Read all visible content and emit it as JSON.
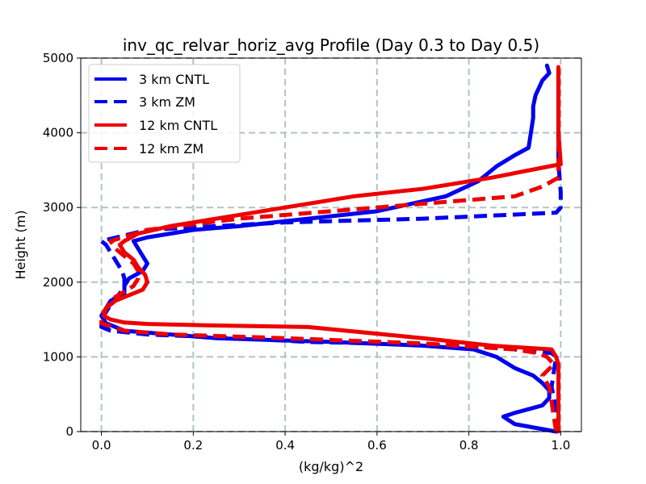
{
  "chart_data": {
    "type": "line",
    "title": "inv_qc_relvar_horiz_avg Profile (Day 0.3 to Day 0.5)",
    "xlabel": "(kg/kg)^2",
    "ylabel": "Height (m)",
    "xlim": [
      -0.045,
      1.045
    ],
    "ylim": [
      0,
      5000
    ],
    "xticks": [
      0.0,
      0.2,
      0.4,
      0.6,
      0.8,
      1.0
    ],
    "xtick_labels": [
      "0.0",
      "0.2",
      "0.4",
      "0.6",
      "0.8",
      "1.0"
    ],
    "yticks": [
      0,
      1000,
      2000,
      3000,
      4000,
      5000
    ],
    "ytick_labels": [
      "0",
      "1000",
      "2000",
      "3000",
      "4000",
      "5000"
    ],
    "grid": true,
    "legend_position": "upper-left",
    "series": [
      {
        "name": "3 km CNTL",
        "color": "#0000ee",
        "dash": "solid",
        "points": [
          [
            0.99,
            0
          ],
          [
            0.9,
            100
          ],
          [
            0.875,
            200
          ],
          [
            0.9,
            250
          ],
          [
            0.96,
            350
          ],
          [
            0.975,
            450
          ],
          [
            0.975,
            550
          ],
          [
            0.96,
            650
          ],
          [
            0.94,
            750
          ],
          [
            0.9,
            850
          ],
          [
            0.86,
            1000
          ],
          [
            0.81,
            1100
          ],
          [
            0.7,
            1150
          ],
          [
            0.5,
            1200
          ],
          [
            0.25,
            1250
          ],
          [
            0.05,
            1350
          ],
          [
            0.01,
            1450
          ],
          [
            0.0,
            1550
          ],
          [
            0.01,
            1650
          ],
          [
            0.02,
            1750
          ],
          [
            0.05,
            1850
          ],
          [
            0.05,
            1950
          ],
          [
            0.06,
            2050
          ],
          [
            0.09,
            2150
          ],
          [
            0.1,
            2250
          ],
          [
            0.09,
            2350
          ],
          [
            0.08,
            2450
          ],
          [
            0.07,
            2550
          ],
          [
            0.1,
            2600
          ],
          [
            0.15,
            2650
          ],
          [
            0.2,
            2700
          ],
          [
            0.3,
            2750
          ],
          [
            0.45,
            2850
          ],
          [
            0.6,
            2950
          ],
          [
            0.75,
            3150
          ],
          [
            0.82,
            3350
          ],
          [
            0.86,
            3550
          ],
          [
            0.9,
            3700
          ],
          [
            0.93,
            3800
          ],
          [
            0.935,
            4000
          ],
          [
            0.94,
            4200
          ],
          [
            0.94,
            4350
          ],
          [
            0.945,
            4500
          ],
          [
            0.96,
            4700
          ],
          [
            0.975,
            4800
          ],
          [
            0.97,
            4900
          ]
        ]
      },
      {
        "name": "3 km ZM",
        "color": "#0000ee",
        "dash": "dashed",
        "points": [
          [
            0.995,
            0
          ],
          [
            0.99,
            300
          ],
          [
            0.98,
            600
          ],
          [
            0.985,
            800
          ],
          [
            0.99,
            1000
          ],
          [
            0.98,
            1050
          ],
          [
            0.9,
            1100
          ],
          [
            0.8,
            1150
          ],
          [
            0.6,
            1180
          ],
          [
            0.45,
            1200
          ],
          [
            0.3,
            1250
          ],
          [
            0.1,
            1300
          ],
          [
            0.02,
            1350
          ],
          [
            0.0,
            1400
          ],
          [
            0.0,
            1500
          ],
          [
            0.01,
            1600
          ],
          [
            0.02,
            1700
          ],
          [
            0.04,
            1850
          ],
          [
            0.05,
            1950
          ],
          [
            0.05,
            2050
          ],
          [
            0.045,
            2150
          ],
          [
            0.03,
            2300
          ],
          [
            0.02,
            2400
          ],
          [
            0.01,
            2500
          ],
          [
            0.0,
            2550
          ],
          [
            0.1,
            2700
          ],
          [
            0.4,
            2800
          ],
          [
            0.7,
            2850
          ],
          [
            0.99,
            2930
          ],
          [
            1.0,
            3000
          ],
          [
            1.0,
            3200
          ],
          [
            0.995,
            3600
          ],
          [
            0.995,
            4000
          ],
          [
            0.995,
            4400
          ],
          [
            0.995,
            4880
          ]
        ]
      },
      {
        "name": "12 km CNTL",
        "color": "#ee0000",
        "dash": "solid",
        "points": [
          [
            0.995,
            0
          ],
          [
            0.995,
            300
          ],
          [
            0.995,
            600
          ],
          [
            0.995,
            900
          ],
          [
            0.99,
            1000
          ],
          [
            0.98,
            1100
          ],
          [
            0.85,
            1150
          ],
          [
            0.7,
            1250
          ],
          [
            0.45,
            1400
          ],
          [
            0.25,
            1420
          ],
          [
            0.1,
            1440
          ],
          [
            0.05,
            1460
          ],
          [
            0.02,
            1500
          ],
          [
            0.005,
            1550
          ],
          [
            0.01,
            1650
          ],
          [
            0.03,
            1750
          ],
          [
            0.07,
            1850
          ],
          [
            0.09,
            1900
          ],
          [
            0.1,
            2000
          ],
          [
            0.095,
            2100
          ],
          [
            0.08,
            2200
          ],
          [
            0.07,
            2300
          ],
          [
            0.05,
            2400
          ],
          [
            0.04,
            2500
          ],
          [
            0.05,
            2550
          ],
          [
            0.08,
            2650
          ],
          [
            0.15,
            2750
          ],
          [
            0.3,
            2900
          ],
          [
            0.45,
            3050
          ],
          [
            0.55,
            3150
          ],
          [
            0.7,
            3250
          ],
          [
            0.85,
            3400
          ],
          [
            1.0,
            3580
          ],
          [
            0.995,
            4000
          ],
          [
            0.995,
            4400
          ],
          [
            0.995,
            4880
          ]
        ]
      },
      {
        "name": "12 km ZM",
        "color": "#ee0000",
        "dash": "dashed",
        "points": [
          [
            0.99,
            0
          ],
          [
            0.985,
            200
          ],
          [
            0.98,
            400
          ],
          [
            0.975,
            600
          ],
          [
            0.96,
            750
          ],
          [
            0.985,
            900
          ],
          [
            0.97,
            1000
          ],
          [
            0.95,
            1050
          ],
          [
            0.9,
            1100
          ],
          [
            0.7,
            1180
          ],
          [
            0.4,
            1250
          ],
          [
            0.15,
            1300
          ],
          [
            0.05,
            1350
          ],
          [
            0.0,
            1450
          ],
          [
            0.0,
            1550
          ],
          [
            0.01,
            1650
          ],
          [
            0.03,
            1800
          ],
          [
            0.07,
            1950
          ],
          [
            0.08,
            2050
          ],
          [
            0.08,
            2150
          ],
          [
            0.07,
            2250
          ],
          [
            0.05,
            2350
          ],
          [
            0.03,
            2450
          ],
          [
            0.02,
            2550
          ],
          [
            0.1,
            2700
          ],
          [
            0.3,
            2850
          ],
          [
            0.6,
            3000
          ],
          [
            0.8,
            3100
          ],
          [
            0.9,
            3150
          ],
          [
            0.96,
            3280
          ],
          [
            0.995,
            3400
          ],
          [
            0.995,
            3800
          ],
          [
            0.995,
            4200
          ],
          [
            0.995,
            4880
          ]
        ]
      }
    ]
  }
}
